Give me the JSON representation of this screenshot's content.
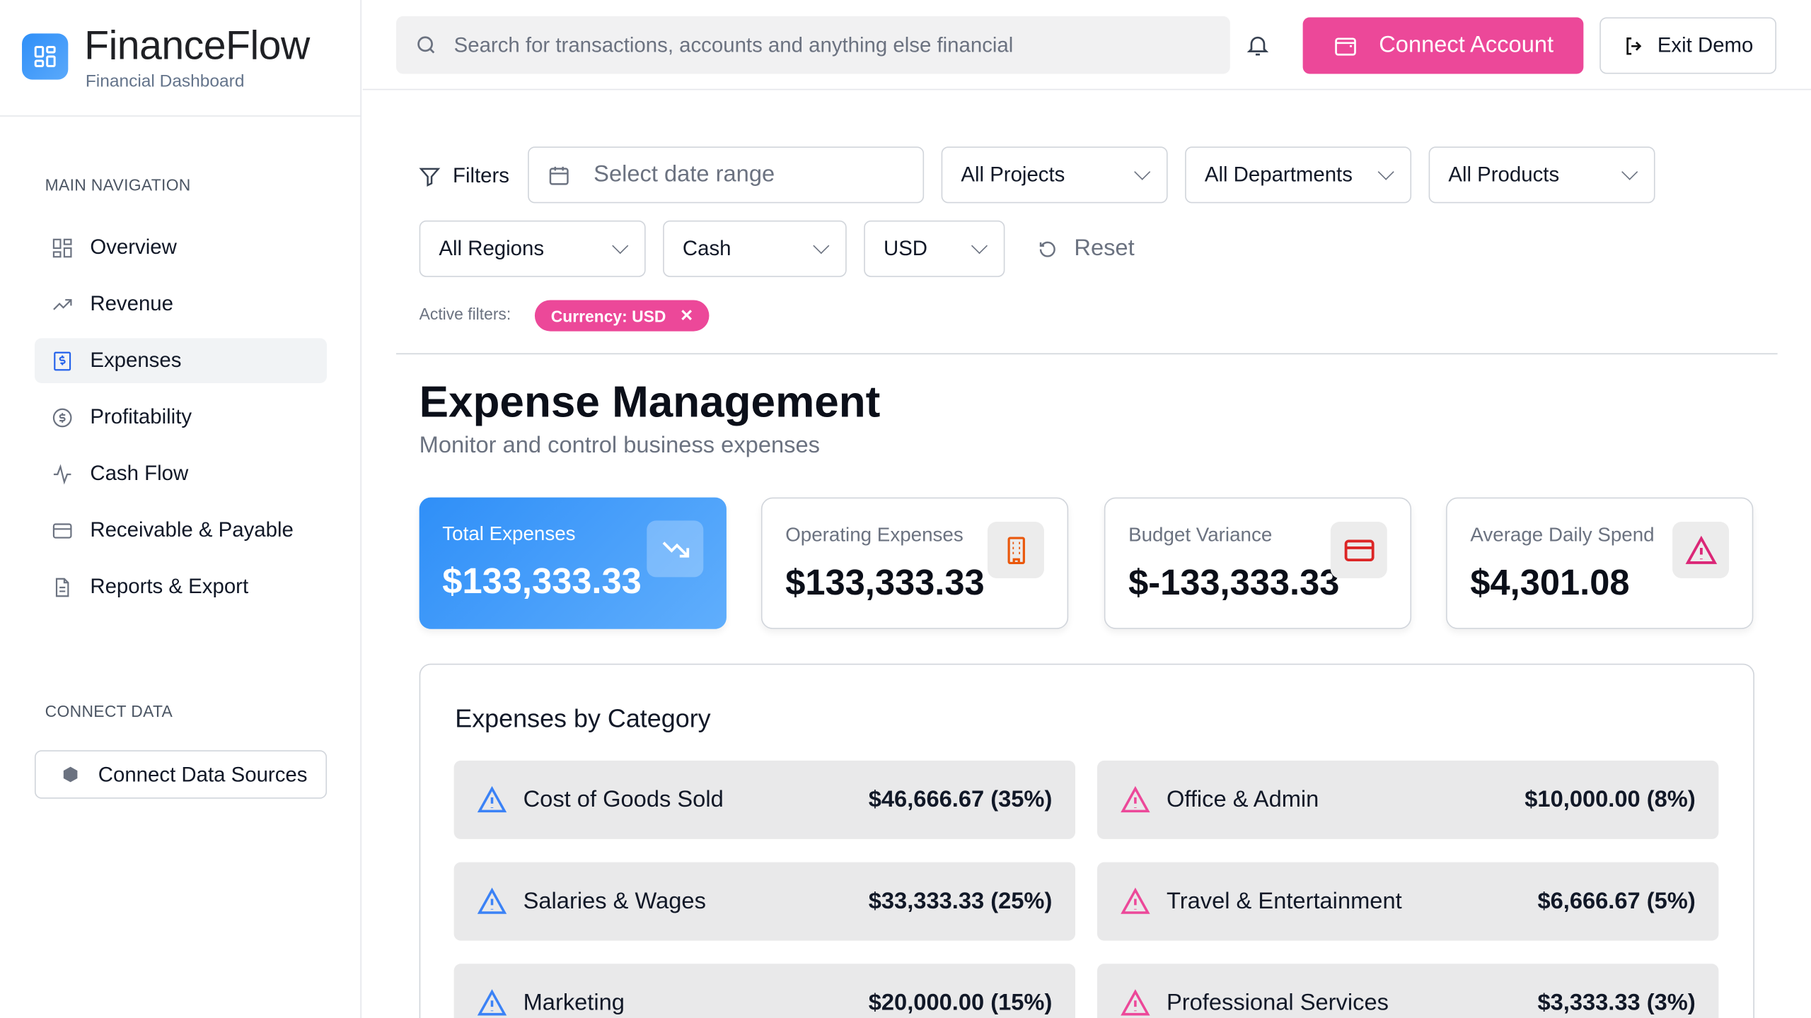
{
  "brand": {
    "name": "FinanceFlow",
    "subtitle": "Financial Dashboard"
  },
  "sidebar": {
    "main_heading": "MAIN NAVIGATION",
    "items": [
      {
        "label": "Overview",
        "icon": "grid-icon"
      },
      {
        "label": "Revenue",
        "icon": "trending-up-icon"
      },
      {
        "label": "Expenses",
        "icon": "receipt-dollar-icon",
        "active": true
      },
      {
        "label": "Profitability",
        "icon": "dollar-circle-icon"
      },
      {
        "label": "Cash Flow",
        "icon": "activity-icon"
      },
      {
        "label": "Receivable & Payable",
        "icon": "credit-card-icon"
      },
      {
        "label": "Reports & Export",
        "icon": "file-icon"
      }
    ],
    "connect_heading": "CONNECT DATA",
    "connect_button": "Connect Data Sources"
  },
  "header": {
    "search_placeholder": "Search for transactions, accounts and anything else financial",
    "connect_account": "Connect Account",
    "exit_demo": "Exit Demo"
  },
  "filters": {
    "label": "Filters",
    "date_placeholder": "Select date range",
    "projects": "All Projects",
    "departments": "All Departments",
    "products": "All Products",
    "regions": "All Regions",
    "account_type": "Cash",
    "currency": "USD",
    "reset": "Reset",
    "active_label": "Active filters:",
    "active_chip": "Currency: USD"
  },
  "page": {
    "title": "Expense Management",
    "subtitle": "Monitor and control business expenses"
  },
  "kpis": [
    {
      "label": "Total Expenses",
      "value": "$133,333.33",
      "icon": "trending-down-icon"
    },
    {
      "label": "Operating Expenses",
      "value": "$133,333.33",
      "icon": "building-icon"
    },
    {
      "label": "Budget Variance",
      "value": "$-133,333.33",
      "icon": "credit-card-icon"
    },
    {
      "label": "Average Daily Spend",
      "value": "$4,301.08",
      "icon": "alert-triangle-icon"
    }
  ],
  "categories": {
    "title": "Expenses by Category",
    "items": [
      {
        "name": "Cost of Goods Sold",
        "amount": "$46,666.67 (35%)",
        "color": "#3b82f6"
      },
      {
        "name": "Office & Admin",
        "amount": "$10,000.00 (8%)",
        "color": "#ec4899"
      },
      {
        "name": "Salaries & Wages",
        "amount": "$33,333.33 (25%)",
        "color": "#3b82f6"
      },
      {
        "name": "Travel & Entertainment",
        "amount": "$6,666.67 (5%)",
        "color": "#ec4899"
      },
      {
        "name": "Marketing",
        "amount": "$20,000.00 (15%)",
        "color": "#3b82f6"
      },
      {
        "name": "Professional Services",
        "amount": "$3,333.33 (3%)",
        "color": "#ec4899"
      }
    ]
  },
  "colors": {
    "accent": "#ec4899",
    "primary": "#2f8ff8"
  }
}
